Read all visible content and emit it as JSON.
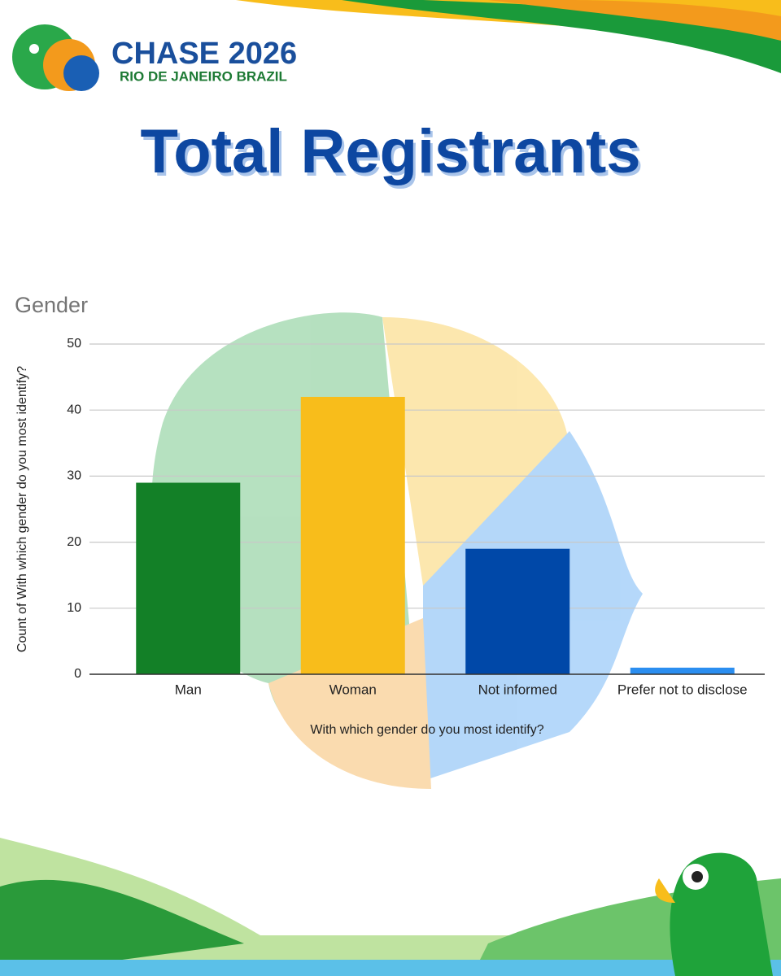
{
  "header": {
    "logo": "CHASE 2026",
    "location": "RIO DE JANEIRO  BRAZIL"
  },
  "title": "Total Registrants",
  "chart_data": {
    "type": "bar",
    "title": "Gender",
    "x_label": "With which gender do you most identify?",
    "y_label": "Count of With which gender do you most identify?",
    "categories": [
      "Man",
      "Woman",
      "Not informed",
      "Prefer not to disclose"
    ],
    "values": [
      29,
      42,
      19,
      1
    ],
    "colors": [
      "#138027",
      "#f8bd1b",
      "#0048a8",
      "#2b8ef0"
    ],
    "ylim": [
      0,
      50
    ],
    "yticks": [
      0,
      10,
      20,
      30,
      40,
      50
    ],
    "grid": true
  }
}
